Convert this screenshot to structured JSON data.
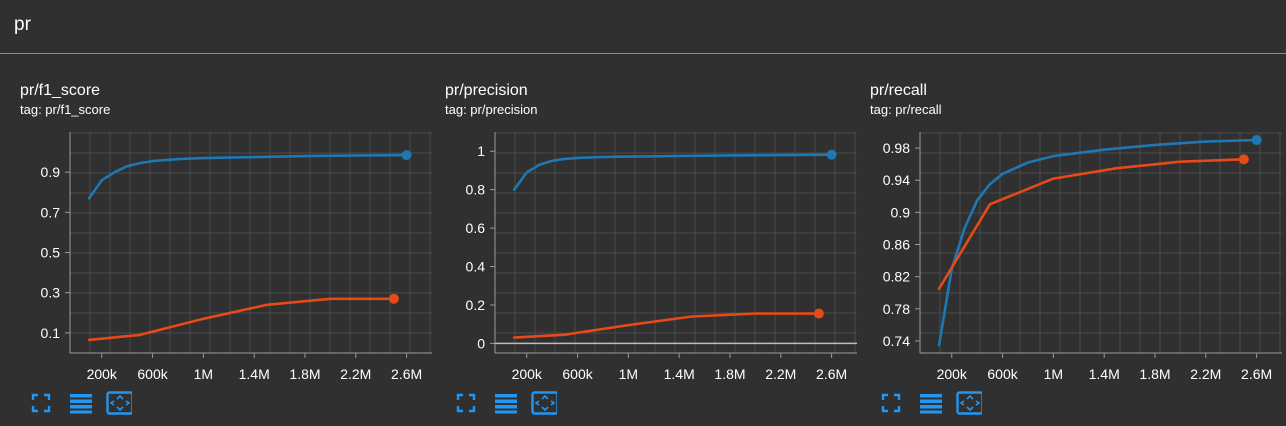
{
  "group": {
    "title": "pr"
  },
  "toolbar": {
    "icons": [
      "fullscreen-icon",
      "toggle-log-icon",
      "fit-domain-icon"
    ]
  },
  "cards": [
    {
      "title": "pr/f1_score",
      "tag": "tag: pr/f1_score",
      "xticks": [
        "200k",
        "600k",
        "1M",
        "1.4M",
        "1.8M",
        "2.2M",
        "2.6M"
      ],
      "yticks": [
        "0.1",
        "0.3",
        "0.5",
        "0.7",
        "0.9"
      ]
    },
    {
      "title": "pr/precision",
      "tag": "tag: pr/precision",
      "xticks": [
        "200k",
        "600k",
        "1M",
        "1.4M",
        "1.8M",
        "2.2M",
        "2.6M"
      ],
      "yticks": [
        "0",
        "0.2",
        "0.4",
        "0.6",
        "0.8",
        "1"
      ]
    },
    {
      "title": "pr/recall",
      "tag": "tag: pr/recall",
      "xticks": [
        "200k",
        "600k",
        "1M",
        "1.4M",
        "1.8M",
        "2.2M",
        "2.6M"
      ],
      "yticks": [
        "0.74",
        "0.78",
        "0.82",
        "0.86",
        "0.9",
        "0.94",
        "0.98"
      ]
    }
  ],
  "chart_data": [
    {
      "type": "line",
      "title": "pr/f1_score",
      "xlim": [
        -50000,
        2800000
      ],
      "ylim": [
        0.0,
        1.1
      ],
      "x_ticks": [
        200000,
        600000,
        1000000,
        1400000,
        1800000,
        2200000,
        2600000
      ],
      "y_ticks": [
        0.1,
        0.3,
        0.5,
        0.7,
        0.9
      ],
      "grid": true,
      "series": [
        {
          "color": "#1f77b4",
          "x": [
            100000,
            200000,
            300000,
            400000,
            500000,
            600000,
            800000,
            1000000,
            1400000,
            1800000,
            2200000,
            2600000
          ],
          "y": [
            0.77,
            0.86,
            0.9,
            0.93,
            0.945,
            0.955,
            0.965,
            0.97,
            0.975,
            0.98,
            0.983,
            0.985
          ]
        },
        {
          "color": "#e64a19",
          "x": [
            100000,
            500000,
            1000000,
            1500000,
            2000000,
            2500000
          ],
          "y": [
            0.065,
            0.09,
            0.17,
            0.24,
            0.27,
            0.27
          ]
        }
      ]
    },
    {
      "type": "line",
      "title": "pr/precision",
      "xlim": [
        -50000,
        2800000
      ],
      "ylim": [
        -0.05,
        1.1
      ],
      "x_ticks": [
        200000,
        600000,
        1000000,
        1400000,
        1800000,
        2200000,
        2600000
      ],
      "y_ticks": [
        0,
        0.2,
        0.4,
        0.6,
        0.8,
        1
      ],
      "grid": true,
      "series": [
        {
          "color": "#1f77b4",
          "x": [
            100000,
            200000,
            300000,
            400000,
            500000,
            600000,
            800000,
            1000000,
            1400000,
            1800000,
            2200000,
            2600000
          ],
          "y": [
            0.8,
            0.89,
            0.93,
            0.95,
            0.96,
            0.965,
            0.97,
            0.972,
            0.975,
            0.978,
            0.98,
            0.982
          ]
        },
        {
          "color": "#e64a19",
          "x": [
            100000,
            500000,
            1000000,
            1500000,
            2000000,
            2500000
          ],
          "y": [
            0.03,
            0.045,
            0.095,
            0.14,
            0.155,
            0.155
          ]
        }
      ]
    },
    {
      "type": "line",
      "title": "pr/recall",
      "xlim": [
        -50000,
        2800000
      ],
      "ylim": [
        0.725,
        1.0
      ],
      "x_ticks": [
        200000,
        600000,
        1000000,
        1400000,
        1800000,
        2200000,
        2600000
      ],
      "y_ticks": [
        0.74,
        0.78,
        0.82,
        0.86,
        0.9,
        0.94,
        0.98
      ],
      "grid": true,
      "series": [
        {
          "color": "#1f77b4",
          "x": [
            100000,
            200000,
            300000,
            400000,
            500000,
            600000,
            800000,
            1000000,
            1400000,
            1800000,
            2200000,
            2600000
          ],
          "y": [
            0.735,
            0.83,
            0.88,
            0.915,
            0.935,
            0.948,
            0.962,
            0.97,
            0.978,
            0.984,
            0.988,
            0.99
          ]
        },
        {
          "color": "#e64a19",
          "x": [
            100000,
            500000,
            1000000,
            1500000,
            2000000,
            2500000
          ],
          "y": [
            0.805,
            0.91,
            0.942,
            0.955,
            0.963,
            0.966
          ]
        }
      ]
    }
  ]
}
